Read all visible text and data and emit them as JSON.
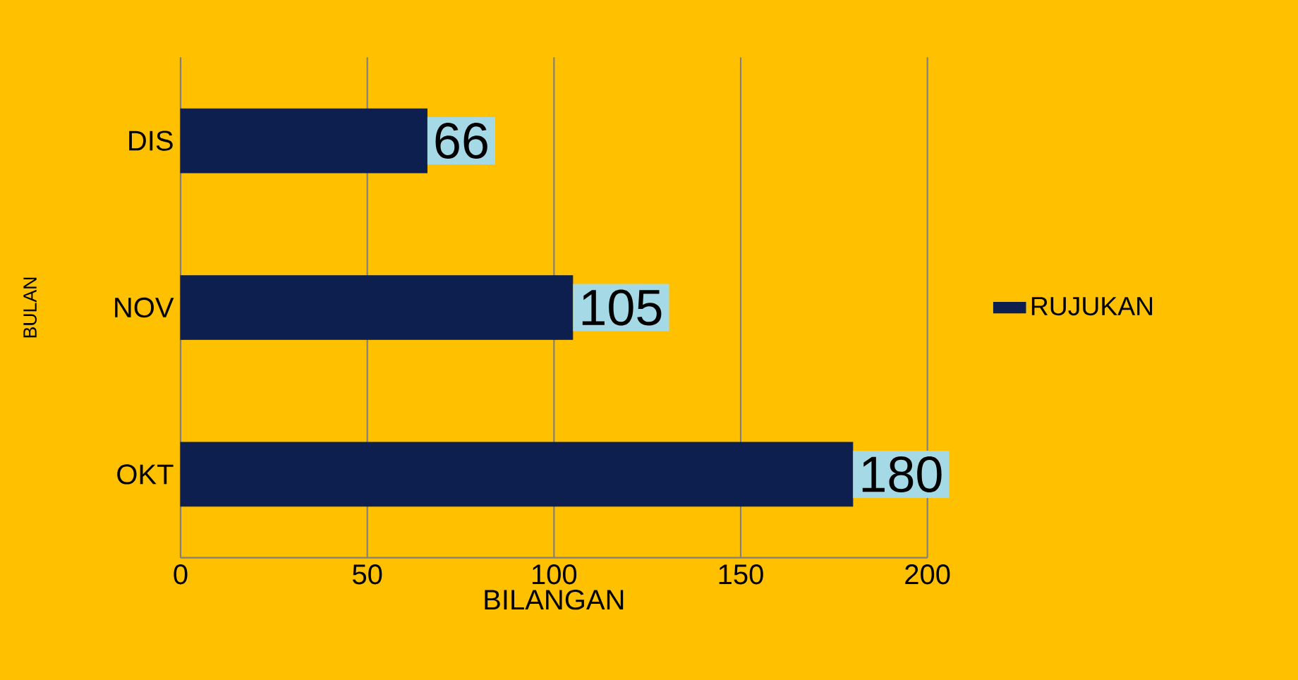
{
  "chart_data": {
    "type": "bar",
    "orientation": "horizontal",
    "xlabel": "BILANGAN",
    "ylabel": "BULAN",
    "categories": [
      "DIS",
      "NOV",
      "OKT"
    ],
    "series": [
      {
        "name": "RUJUKAN",
        "color": "#0c1f4f",
        "values": [
          66,
          105,
          180
        ]
      }
    ],
    "xlim": [
      0,
      200
    ],
    "xticks": [
      0,
      50,
      100,
      150,
      200
    ],
    "grid": "x",
    "legend": "right",
    "data_labels": true
  }
}
